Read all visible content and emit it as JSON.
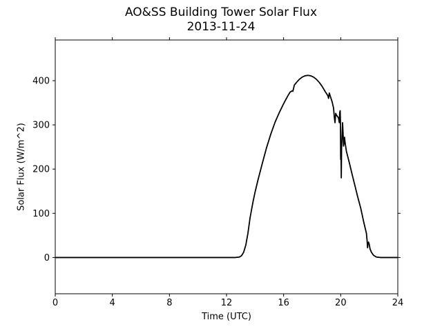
{
  "chart_data": {
    "type": "line",
    "title": "AO&SS Building Tower Solar Flux",
    "subtitle": "2013-11-24",
    "xlabel": "Time (UTC)",
    "ylabel": "Solar Flux (W/m^2)",
    "xlim": [
      0,
      24
    ],
    "ylim": [
      -82,
      492
    ],
    "x_ticks": [
      0,
      4,
      8,
      12,
      16,
      20,
      24
    ],
    "y_ticks": [
      0,
      100,
      200,
      300,
      400
    ],
    "grid": false,
    "series_color": "#000000",
    "series": [
      {
        "points": [
          [
            0,
            0
          ],
          [
            12.6,
            0
          ],
          [
            12.9,
            1
          ],
          [
            13.05,
            4
          ],
          [
            13.2,
            12
          ],
          [
            13.35,
            28
          ],
          [
            13.5,
            55
          ],
          [
            13.65,
            90
          ],
          [
            13.85,
            125
          ],
          [
            14.0,
            148
          ],
          [
            14.2,
            175
          ],
          [
            14.5,
            212
          ],
          [
            14.8,
            248
          ],
          [
            15.1,
            279
          ],
          [
            15.4,
            306
          ],
          [
            15.7,
            328
          ],
          [
            16.0,
            348
          ],
          [
            16.3,
            366
          ],
          [
            16.45,
            374
          ],
          [
            16.6,
            377
          ],
          [
            16.65,
            376
          ],
          [
            16.75,
            390
          ],
          [
            16.9,
            396
          ],
          [
            17.1,
            403
          ],
          [
            17.3,
            408
          ],
          [
            17.5,
            411
          ],
          [
            17.7,
            412
          ],
          [
            17.9,
            411
          ],
          [
            18.1,
            408
          ],
          [
            18.3,
            403
          ],
          [
            18.5,
            396
          ],
          [
            18.7,
            387
          ],
          [
            18.9,
            376
          ],
          [
            19.1,
            366
          ],
          [
            19.15,
            360
          ],
          [
            19.2,
            372
          ],
          [
            19.3,
            362
          ],
          [
            19.4,
            352
          ],
          [
            19.5,
            338
          ],
          [
            19.55,
            318
          ],
          [
            19.6,
            305
          ],
          [
            19.65,
            326
          ],
          [
            19.7,
            322
          ],
          [
            19.8,
            318
          ],
          [
            19.85,
            315
          ],
          [
            19.9,
            305
          ],
          [
            19.93,
            328
          ],
          [
            19.96,
            332
          ],
          [
            19.98,
            310
          ],
          [
            20.0,
            222
          ],
          [
            20.02,
            250
          ],
          [
            20.04,
            180
          ],
          [
            20.06,
            248
          ],
          [
            20.1,
            280
          ],
          [
            20.13,
            305
          ],
          [
            20.16,
            285
          ],
          [
            20.2,
            252
          ],
          [
            20.23,
            258
          ],
          [
            20.27,
            272
          ],
          [
            20.3,
            262
          ],
          [
            20.4,
            240
          ],
          [
            20.6,
            215
          ],
          [
            20.8,
            188
          ],
          [
            21.0,
            162
          ],
          [
            21.2,
            136
          ],
          [
            21.4,
            112
          ],
          [
            21.6,
            82
          ],
          [
            21.8,
            55
          ],
          [
            21.85,
            38
          ],
          [
            21.88,
            22
          ],
          [
            21.92,
            32
          ],
          [
            21.95,
            35
          ],
          [
            22.0,
            30
          ],
          [
            22.05,
            20
          ],
          [
            22.15,
            12
          ],
          [
            22.3,
            5
          ],
          [
            22.5,
            1
          ],
          [
            22.8,
            0
          ],
          [
            24,
            0
          ]
        ]
      }
    ]
  }
}
